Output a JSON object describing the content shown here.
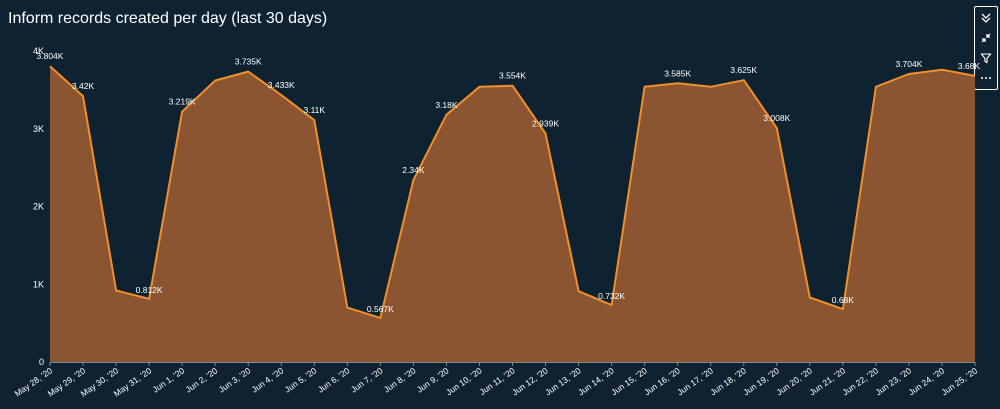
{
  "header": {
    "title": "Inform records created per day (last 30 days)"
  },
  "toolbar": {
    "items": [
      {
        "icon": "double-chevron-down-icon"
      },
      {
        "icon": "collapse-arrows-icon"
      },
      {
        "icon": "filter-icon"
      },
      {
        "icon": "more-options-icon"
      }
    ]
  },
  "chart_data": {
    "type": "area",
    "title": "Inform records created per day (last 30 days)",
    "xlabel": "",
    "ylabel": "",
    "ylim": [
      0,
      4000
    ],
    "y_ticks": [
      {
        "value": 0,
        "label": "0"
      },
      {
        "value": 1000,
        "label": "1K"
      },
      {
        "value": 2000,
        "label": "2K"
      },
      {
        "value": 3000,
        "label": "3K"
      },
      {
        "value": 4000,
        "label": "4K"
      }
    ],
    "categories": [
      "May 28, '20",
      "May 29, '20",
      "May 30, '20",
      "May 31, '20",
      "Jun 1, '20",
      "Jun 2, '20",
      "Jun 3, '20",
      "Jun 4, '20",
      "Jun 5, '20",
      "Jun 6, '20",
      "Jun 7, '20",
      "Jun 8, '20",
      "Jun 9, '20",
      "Jun 10, '20",
      "Jun 11, '20",
      "Jun 12, '20",
      "Jun 13, '20",
      "Jun 14, '20",
      "Jun 15, '20",
      "Jun 16, '20",
      "Jun 17, '20",
      "Jun 18, '20",
      "Jun 19, '20",
      "Jun 20, '20",
      "Jun 21, '20",
      "Jun 22, '20",
      "Jun 23, '20",
      "Jun 24, '20",
      "Jun 25, '20"
    ],
    "values": [
      3804,
      3420,
      920,
      812,
      3219,
      3620,
      3735,
      3433,
      3110,
      700,
      567,
      2340,
      3180,
      3540,
      3554,
      2939,
      910,
      732,
      3540,
      3585,
      3540,
      3625,
      3008,
      830,
      680,
      3540,
      3704,
      3760,
      3680
    ],
    "point_labels": [
      "3.804K",
      "3.42K",
      "",
      "0.812K",
      "3.219K",
      "",
      "3.735K",
      "3.433K",
      "3.11K",
      "",
      "0.567K",
      "2.34K",
      "3.18K",
      "",
      "3.554K",
      "2.939K",
      "",
      "0.732K",
      "",
      "3.585K",
      "",
      "3.625K",
      "3.008K",
      "",
      "0.68K",
      "",
      "3.704K",
      "",
      "3.68K"
    ],
    "grid": false,
    "colors": {
      "line": "#f0902a",
      "fill": "#8a5530",
      "background": "#0f2231",
      "text": "#ffffff",
      "axis": "#7d8b96"
    }
  }
}
